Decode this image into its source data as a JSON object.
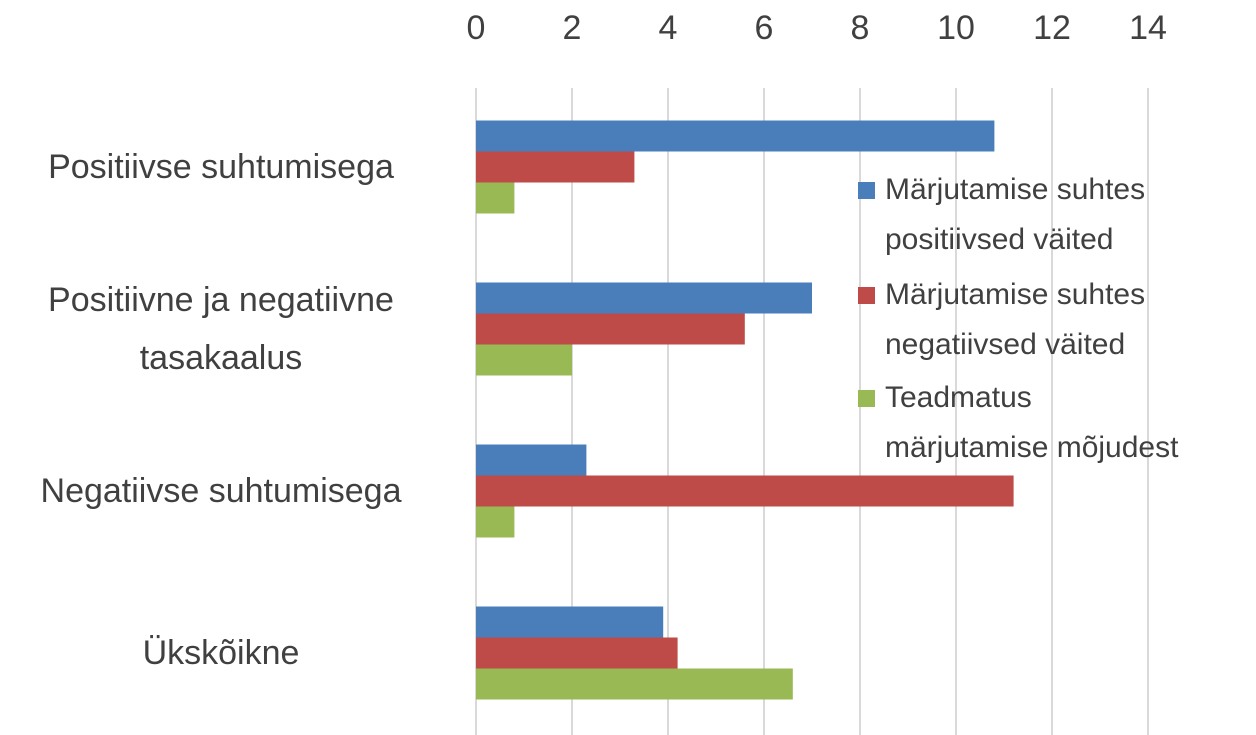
{
  "chart_data": {
    "type": "hbar",
    "categories": [
      "Positiivse suhtumisega",
      "Positiivne ja negatiivne tasakaalus",
      "Negatiivse suhtumisega",
      "Ükskõikne"
    ],
    "series": [
      {
        "name": "Märjutamise suhtes positiivsed väited",
        "color": "#4a7ebb",
        "values": [
          10.8,
          7.0,
          2.3,
          3.9
        ]
      },
      {
        "name": "Märjutamise suhtes negatiivsed väited",
        "color": "#be4b48",
        "values": [
          3.3,
          5.6,
          11.2,
          4.2
        ]
      },
      {
        "name": "Teadmatus märjutamise mõjudest",
        "color": "#98b954",
        "values": [
          0.8,
          2.0,
          0.8,
          6.6
        ]
      }
    ],
    "xlim": [
      0,
      14
    ],
    "xticks": [
      0,
      2,
      4,
      6,
      8,
      10,
      12,
      14
    ],
    "grid": true,
    "legend": "right"
  }
}
